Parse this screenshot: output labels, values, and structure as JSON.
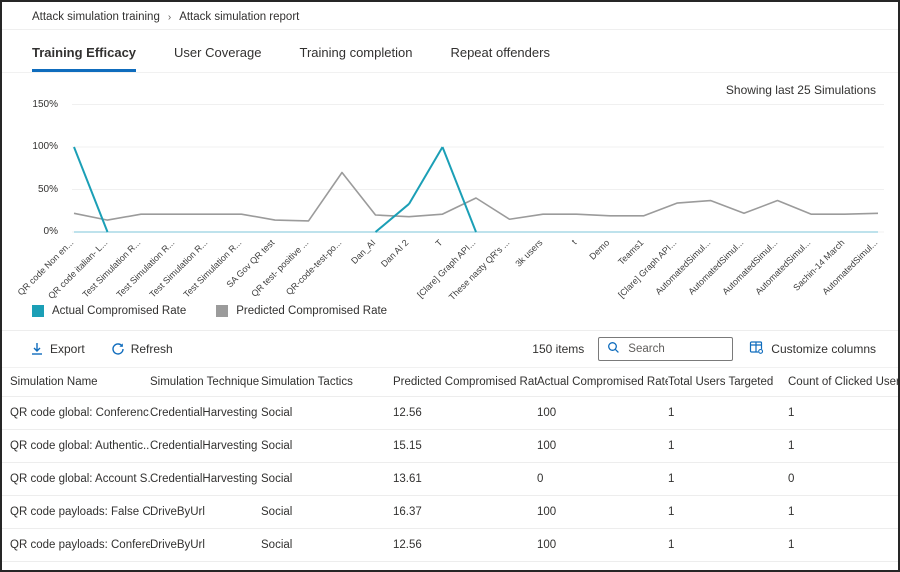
{
  "breadcrumb": {
    "items": [
      "Attack simulation training",
      "Attack simulation report"
    ],
    "separator": "›"
  },
  "tabs": [
    {
      "label": "Training Efficacy",
      "active": true
    },
    {
      "label": "User Coverage",
      "active": false
    },
    {
      "label": "Training completion",
      "active": false
    },
    {
      "label": "Repeat offenders",
      "active": false
    }
  ],
  "chart": {
    "note": "Showing last 25 Simulations"
  },
  "chart_data": {
    "type": "line",
    "title": "",
    "xlabel": "",
    "ylabel": "",
    "ylim": [
      0,
      150
    ],
    "ytick_labels": [
      "0%",
      "50%",
      "100%",
      "150%"
    ],
    "grid": true,
    "legend_position": "bottom-left",
    "x": [
      "QR code Non en...",
      "QR code italian- L...",
      "Test Simulation R...",
      "Test Simulation R...",
      "Test Simulation R...",
      "Test Simulation R...",
      "SA Gov QR test",
      "QR test- positive ...",
      "QR-code-test-po...",
      "Dan_AI",
      "Dan AI 2",
      "T",
      "[Clare] Graph API...",
      "These nasty QR's ...",
      "3k users",
      "t",
      "Demo",
      "Teams1",
      "[Clare] Graph API...",
      "AutomatedSimul...",
      "AutomatedSimul...",
      "AutomatedSimul...",
      "AutomatedSimul...",
      "Sachin-14 March",
      "AutomatedSimul..."
    ],
    "series": [
      {
        "name": "Actual Compromised Rate",
        "color": "#1b9fb6",
        "zero_color": "#a9d9e6",
        "values": [
          100,
          0,
          0,
          0,
          0,
          0,
          0,
          0,
          0,
          0,
          33,
          100,
          0,
          0,
          0,
          0,
          0,
          0,
          0,
          0,
          0,
          0,
          0,
          0,
          0
        ]
      },
      {
        "name": "Predicted Compromised Rate",
        "color": "#9b9b9b",
        "values": [
          22,
          14,
          21,
          21,
          21,
          21,
          14,
          13,
          70,
          20,
          18,
          21,
          40,
          15,
          21,
          21,
          19,
          19,
          34,
          37,
          22,
          37,
          21,
          21,
          22
        ]
      }
    ],
    "gridline_color": "#f0f0f0"
  },
  "toolbar": {
    "export_label": "Export",
    "refresh_label": "Refresh",
    "items_count": "150 items",
    "search_placeholder": "Search",
    "customize_label": "Customize columns"
  },
  "table": {
    "columns": [
      "Simulation Name",
      "Simulation Technique",
      "Simulation Tactics",
      "Predicted Compromised Rate",
      "Actual Compromised Rate",
      "Total Users Targeted",
      "Count of Clicked Users"
    ],
    "rows": [
      [
        "QR code global: Conferenc...",
        "CredentialHarvesting",
        "Social",
        "12.56",
        "100",
        "1",
        "1"
      ],
      [
        "QR code global: Authentic...",
        "CredentialHarvesting",
        "Social",
        "15.15",
        "100",
        "1",
        "1"
      ],
      [
        "QR code global: Account S...",
        "CredentialHarvesting",
        "Social",
        "13.61",
        "0",
        "1",
        "0"
      ],
      [
        "QR code payloads: False Ch...",
        "DriveByUrl",
        "Social",
        "16.37",
        "100",
        "1",
        "1"
      ],
      [
        "QR code payloads: Confere...",
        "DriveByUrl",
        "Social",
        "12.56",
        "100",
        "1",
        "1"
      ]
    ]
  },
  "colors": {
    "accent_blue": "#0f6cbd",
    "teal": "#1b9fb6",
    "gray_series": "#9b9b9b"
  }
}
